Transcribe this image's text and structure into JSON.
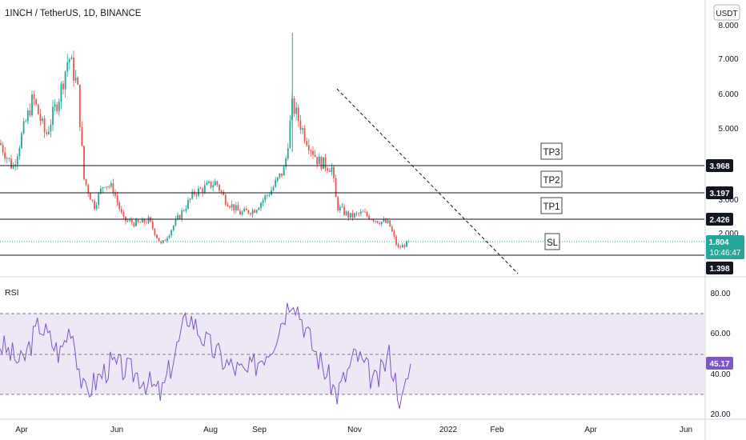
{
  "header": {
    "title": "1INCH / TetherUS, 1D, BINANCE"
  },
  "currency": "USDT",
  "colors": {
    "up": "#26a69a",
    "down": "#ef5350",
    "rsi_line": "#7e57c2",
    "rsi_band": "#ede7f6",
    "price_line": "#26a69a",
    "axis_text": "#131722"
  },
  "price_axis": {
    "ticks": [
      "8.000",
      "7.000",
      "6.000",
      "5.000",
      "3.000",
      "2.000"
    ]
  },
  "levels": [
    {
      "label": "TP3",
      "value": "3.968"
    },
    {
      "label": "TP2",
      "value": "3.197"
    },
    {
      "label": "TP1",
      "value": "2.426"
    },
    {
      "label": "SL",
      "value": "1.398"
    }
  ],
  "current": {
    "price": "1.804",
    "countdown": "10:46:47"
  },
  "rsi": {
    "label": "RSI",
    "value": "45.17",
    "ticks": [
      "80.00",
      "60.00",
      "40.00",
      "20.00"
    ],
    "upper": 70,
    "lower": 30
  },
  "time_axis": [
    "Apr",
    "Jun",
    "Aug",
    "Sep",
    "Nov",
    "2022",
    "Feb",
    "Apr",
    "Jun"
  ],
  "chart_data": {
    "type": "candlestick",
    "title": "1INCH / TetherUS, 1D, BINANCE",
    "y_unit": "USDT",
    "ylim": [
      1.2,
      8.0
    ],
    "price_path": [
      [
        "2021-03-15",
        4.6
      ],
      [
        "2021-03-25",
        3.9
      ],
      [
        "2021-04-01",
        4.8
      ],
      [
        "2021-04-10",
        5.9
      ],
      [
        "2021-04-20",
        4.8
      ],
      [
        "2021-05-01",
        6.0
      ],
      [
        "2021-05-08",
        7.1
      ],
      [
        "2021-05-15",
        6.2
      ],
      [
        "2021-05-20",
        3.6
      ],
      [
        "2021-05-28",
        2.8
      ],
      [
        "2021-06-05",
        3.5
      ],
      [
        "2021-06-12",
        3.3
      ],
      [
        "2021-06-20",
        2.4
      ],
      [
        "2021-07-01",
        2.3
      ],
      [
        "2021-07-10",
        2.4
      ],
      [
        "2021-07-20",
        1.7
      ],
      [
        "2021-08-01",
        2.4
      ],
      [
        "2021-08-15",
        3.2
      ],
      [
        "2021-09-01",
        3.5
      ],
      [
        "2021-09-08",
        3.0
      ],
      [
        "2021-09-20",
        2.6
      ],
      [
        "2021-10-01",
        2.7
      ],
      [
        "2021-10-15",
        3.3
      ],
      [
        "2021-10-25",
        3.9
      ],
      [
        "2021-10-31",
        5.7
      ],
      [
        "2021-11-10",
        4.8
      ],
      [
        "2021-11-20",
        4.1
      ],
      [
        "2021-12-01",
        3.9
      ],
      [
        "2021-12-05",
        2.8
      ],
      [
        "2021-12-15",
        2.5
      ],
      [
        "2021-12-25",
        2.6
      ],
      [
        "2022-01-05",
        2.4
      ],
      [
        "2022-01-15",
        2.3
      ],
      [
        "2022-01-22",
        1.6
      ],
      [
        "2022-02-01",
        1.804
      ]
    ],
    "annotations": [
      "TP3",
      "TP2",
      "TP1",
      "SL"
    ],
    "horizontal_levels": [
      3.968,
      3.197,
      2.426,
      1.398
    ],
    "last_price": 1.804,
    "rsi": {
      "name": "RSI",
      "upper": 70,
      "lower": 30,
      "last": 45.17,
      "path": [
        [
          "2021-03-15",
          55
        ],
        [
          "2021-04-01",
          45
        ],
        [
          "2021-04-15",
          65
        ],
        [
          "2021-05-01",
          50
        ],
        [
          "2021-05-10",
          65
        ],
        [
          "2021-05-20",
          30
        ],
        [
          "2021-06-10",
          45
        ],
        [
          "2021-07-01",
          40
        ],
        [
          "2021-07-20",
          30
        ],
        [
          "2021-08-10",
          70
        ],
        [
          "2021-08-25",
          55
        ],
        [
          "2021-09-10",
          45
        ],
        [
          "2021-09-25",
          40
        ],
        [
          "2021-10-15",
          55
        ],
        [
          "2021-10-31",
          80
        ],
        [
          "2021-11-15",
          55
        ],
        [
          "2021-12-05",
          30
        ],
        [
          "2021-12-20",
          50
        ],
        [
          "2022-01-05",
          35
        ],
        [
          "2022-01-15",
          50
        ],
        [
          "2022-01-25",
          25
        ],
        [
          "2022-02-01",
          45.17
        ]
      ]
    }
  }
}
